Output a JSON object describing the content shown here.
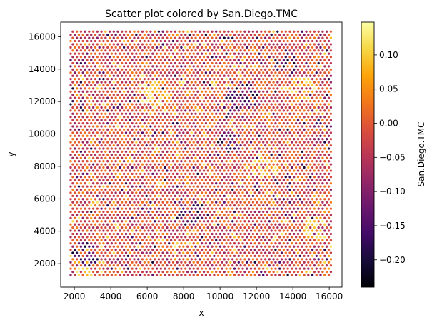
{
  "chart_data": {
    "type": "scatter",
    "title": "Scatter plot colored by San.Diego.TMC",
    "xlabel": "x",
    "ylabel": "y",
    "xlim": [
      1250,
      16700
    ],
    "ylim": [
      550,
      16900
    ],
    "xticks": [
      2000,
      4000,
      6000,
      8000,
      10000,
      12000,
      14000,
      16000
    ],
    "yticks": [
      2000,
      4000,
      6000,
      8000,
      10000,
      12000,
      14000,
      16000
    ],
    "grid": false,
    "colorbar": {
      "label": "San.Diego.TMC",
      "colormap": "inferno",
      "range": [
        -0.24,
        0.148
      ],
      "ticks": [
        0.1,
        0.05,
        0.0,
        -0.05,
        -0.1,
        -0.15,
        -0.2
      ],
      "tick_labels": [
        "0.10",
        "0.05",
        "0.00",
        "−0.05",
        "−0.10",
        "−0.15",
        "−0.20"
      ]
    },
    "grid_layout": {
      "x_start": 1800,
      "x_end": 16100,
      "x_step": 225,
      "y_start": 1300,
      "y_end": 16400,
      "y_step": 195,
      "row_offset": 112.5
    },
    "value_distribution": {
      "typical": [
        -0.08,
        0.04
      ],
      "min": -0.24,
      "max": 0.14,
      "low_clusters": [
        {
          "x": 13700,
          "y": 14400,
          "r": 700
        },
        {
          "x": 11200,
          "y": 12300,
          "r": 900
        },
        {
          "x": 2600,
          "y": 2600,
          "r": 800
        },
        {
          "x": 8200,
          "y": 5200,
          "r": 900
        },
        {
          "x": 10500,
          "y": 9500,
          "r": 700
        }
      ],
      "high_clusters": [
        {
          "x": 12500,
          "y": 8000,
          "r": 800
        },
        {
          "x": 15200,
          "y": 4200,
          "r": 800
        },
        {
          "x": 6500,
          "y": 12500,
          "r": 900
        },
        {
          "x": 2500,
          "y": 1700,
          "r": 600
        },
        {
          "x": 14500,
          "y": 12800,
          "r": 700
        }
      ]
    }
  }
}
